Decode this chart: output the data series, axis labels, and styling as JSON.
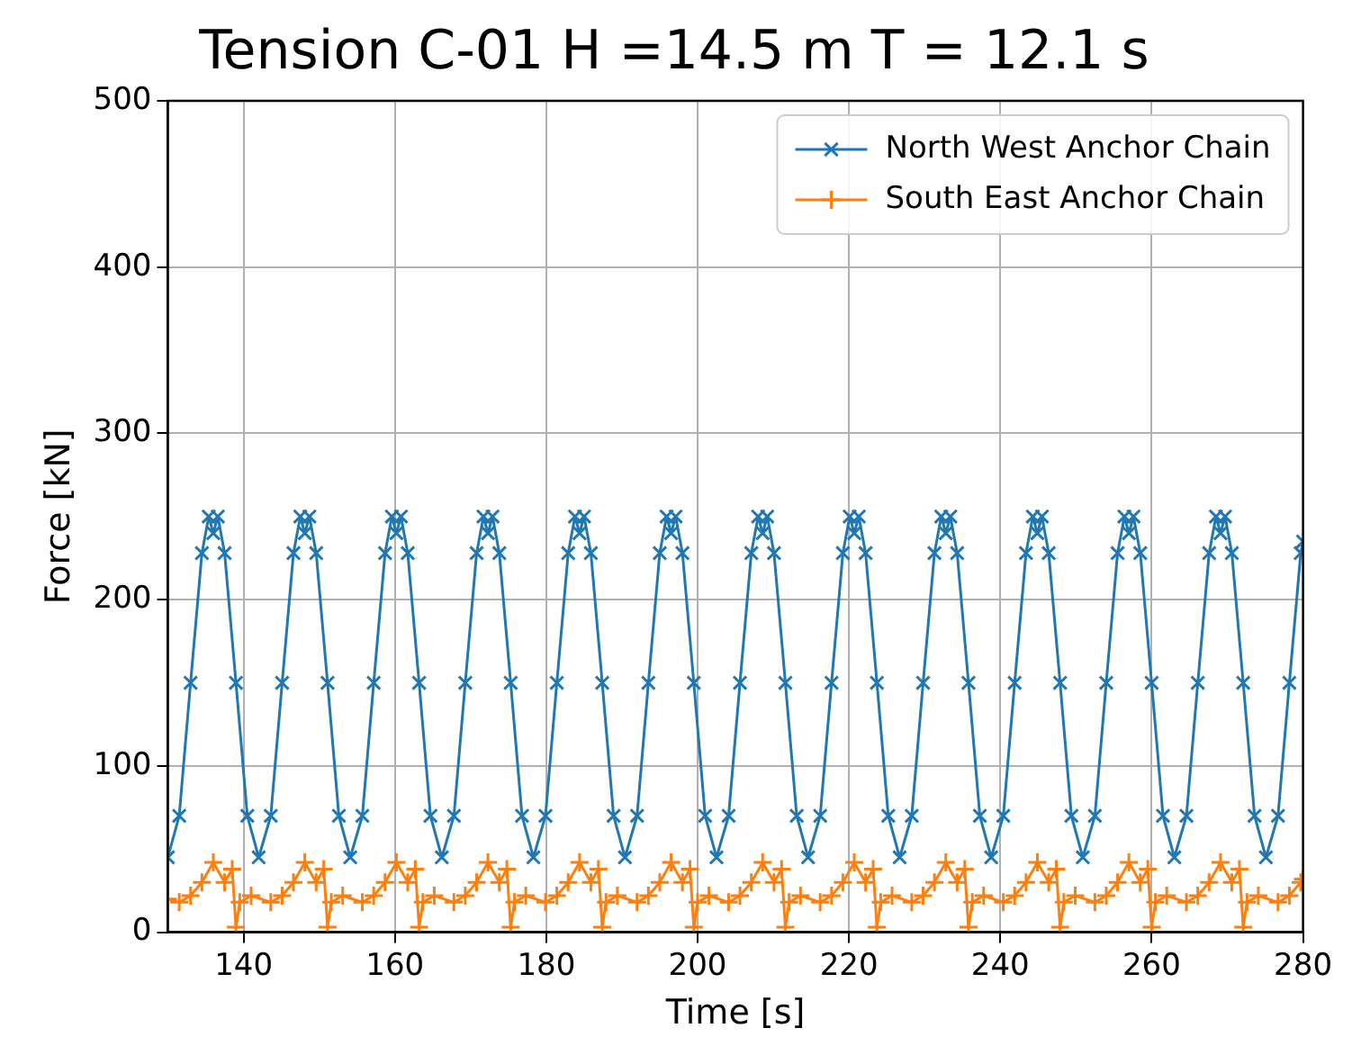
{
  "chart_data": {
    "type": "line",
    "title": "Tension C-01 H =14.5 m T = 12.1 s",
    "xlabel": "Time [s]",
    "ylabel": "Force [kN]",
    "xlim": [
      130,
      280
    ],
    "xticks": [
      140,
      160,
      180,
      200,
      220,
      240,
      260,
      280
    ],
    "ylim": [
      0,
      500
    ],
    "yticks": [
      0,
      100,
      200,
      300,
      400,
      500
    ],
    "grid": true,
    "legend": "top right",
    "series": [
      {
        "name": "North West Anchor Chain",
        "color": "#1f77b4",
        "marker": "cross",
        "x": [
          130.0,
          131.5,
          133.0,
          134.5,
          135.4,
          136.0,
          136.6,
          137.5,
          139.0,
          140.5,
          142.0,
          143.6,
          145.1,
          146.6,
          147.5,
          148.1,
          148.7,
          149.6,
          151.1,
          152.6,
          154.1,
          155.7,
          157.2,
          158.7,
          159.6,
          160.2,
          160.8,
          161.7,
          163.2,
          164.7,
          166.2,
          167.8,
          169.3,
          170.8,
          171.7,
          172.3,
          172.9,
          173.8,
          175.3,
          176.8,
          178.3,
          179.9,
          181.4,
          182.9,
          183.8,
          184.4,
          185.0,
          185.9,
          187.4,
          188.9,
          190.4,
          192.0,
          193.5,
          195.0,
          195.9,
          196.5,
          197.1,
          198.0,
          199.5,
          201.0,
          202.5,
          204.1,
          205.6,
          207.1,
          208.0,
          208.6,
          209.2,
          210.1,
          211.6,
          213.1,
          214.6,
          216.2,
          217.7,
          219.2,
          220.1,
          220.7,
          221.3,
          222.2,
          223.7,
          225.2,
          226.7,
          228.3,
          229.8,
          231.3,
          232.2,
          232.8,
          233.4,
          234.3,
          235.8,
          237.3,
          238.8,
          240.4,
          241.9,
          243.4,
          244.3,
          244.9,
          245.5,
          246.4,
          247.9,
          249.4,
          250.9,
          252.5,
          254.0,
          255.5,
          256.4,
          257.0,
          257.6,
          258.5,
          260.0,
          261.5,
          263.0,
          264.6,
          266.1,
          267.6,
          268.5,
          269.1,
          269.7,
          270.6,
          272.1,
          273.6,
          275.1,
          276.7,
          278.2,
          279.7,
          280.0
        ],
        "values": [
          45,
          70,
          150,
          228,
          250,
          240,
          250,
          228,
          150,
          70,
          45,
          70,
          150,
          228,
          250,
          240,
          250,
          228,
          150,
          70,
          45,
          70,
          150,
          228,
          250,
          240,
          250,
          228,
          150,
          70,
          45,
          70,
          150,
          228,
          250,
          240,
          250,
          228,
          150,
          70,
          45,
          70,
          150,
          228,
          250,
          240,
          250,
          228,
          150,
          70,
          45,
          70,
          150,
          228,
          250,
          240,
          250,
          228,
          150,
          70,
          45,
          70,
          150,
          228,
          250,
          240,
          250,
          228,
          150,
          70,
          45,
          70,
          150,
          228,
          250,
          240,
          250,
          228,
          150,
          70,
          45,
          70,
          150,
          228,
          250,
          240,
          250,
          228,
          150,
          70,
          45,
          70,
          150,
          228,
          250,
          240,
          250,
          228,
          150,
          70,
          45,
          70,
          150,
          228,
          250,
          240,
          250,
          228,
          150,
          70,
          45,
          70,
          150,
          228,
          250,
          240,
          250,
          228,
          150,
          70,
          45,
          70,
          150,
          228,
          235
        ]
      },
      {
        "name": "South East Anchor Chain",
        "color": "#ff7f0e",
        "marker": "plus",
        "x": [
          130.0,
          131.5,
          133.0,
          134.5,
          136.0,
          137.5,
          138.5,
          139.0,
          139.5,
          141.0,
          143.6,
          145.1,
          146.6,
          148.1,
          149.6,
          150.6,
          151.1,
          151.6,
          153.1,
          155.7,
          157.2,
          158.7,
          160.2,
          161.7,
          162.7,
          163.2,
          163.7,
          165.2,
          167.8,
          169.3,
          170.8,
          172.3,
          173.8,
          174.8,
          175.3,
          175.8,
          177.3,
          179.9,
          181.4,
          182.9,
          184.4,
          185.9,
          186.9,
          187.4,
          187.9,
          189.4,
          192.0,
          193.5,
          195.0,
          196.5,
          198.0,
          199.0,
          199.5,
          200.0,
          201.5,
          204.1,
          205.6,
          207.1,
          208.6,
          210.1,
          211.1,
          211.6,
          212.1,
          213.6,
          216.2,
          217.7,
          219.2,
          220.7,
          222.2,
          223.2,
          223.7,
          224.2,
          225.7,
          228.3,
          229.8,
          231.3,
          232.8,
          234.3,
          235.3,
          235.8,
          236.3,
          237.8,
          240.4,
          241.9,
          243.4,
          244.9,
          246.4,
          247.4,
          247.9,
          248.4,
          249.9,
          252.5,
          254.0,
          255.5,
          257.0,
          258.5,
          259.5,
          260.0,
          260.5,
          262.0,
          264.6,
          266.1,
          267.6,
          269.1,
          270.6,
          271.6,
          272.1,
          272.6,
          274.1,
          276.7,
          278.2,
          279.7,
          280.0
        ],
        "values": [
          20,
          18,
          22,
          30,
          42,
          30,
          38,
          3,
          18,
          22,
          18,
          22,
          30,
          42,
          30,
          38,
          3,
          18,
          22,
          18,
          22,
          30,
          42,
          30,
          38,
          3,
          18,
          22,
          18,
          22,
          30,
          42,
          30,
          38,
          3,
          18,
          22,
          18,
          22,
          30,
          42,
          30,
          38,
          3,
          18,
          22,
          18,
          22,
          30,
          42,
          30,
          38,
          3,
          18,
          22,
          18,
          22,
          30,
          42,
          30,
          38,
          3,
          18,
          22,
          18,
          22,
          30,
          42,
          30,
          38,
          3,
          18,
          22,
          18,
          22,
          30,
          42,
          30,
          38,
          3,
          18,
          22,
          18,
          22,
          30,
          42,
          30,
          38,
          3,
          18,
          22,
          18,
          22,
          30,
          42,
          30,
          38,
          3,
          18,
          22,
          18,
          22,
          30,
          42,
          30,
          38,
          3,
          18,
          22,
          18,
          22,
          30,
          32
        ]
      }
    ]
  }
}
